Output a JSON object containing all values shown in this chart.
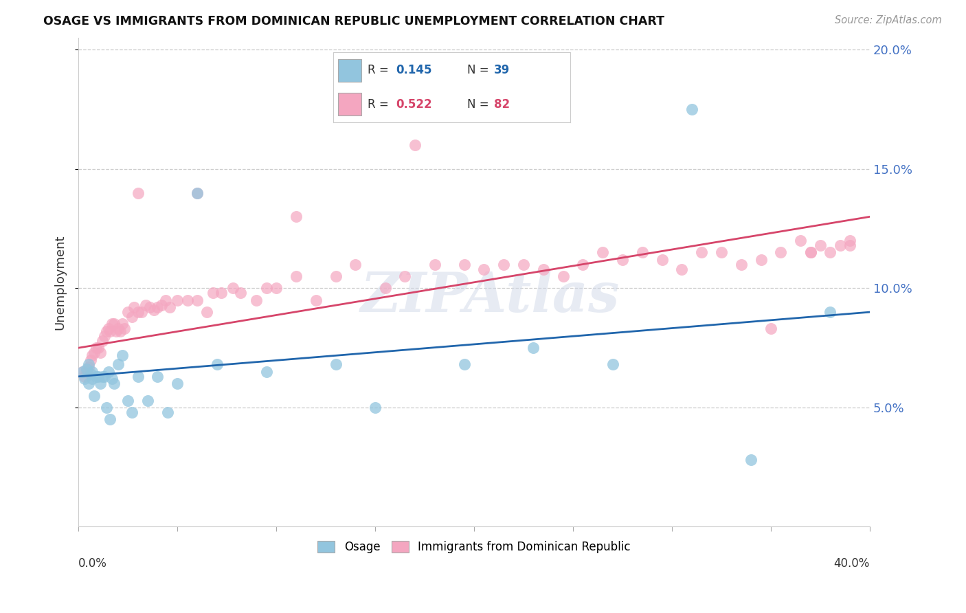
{
  "title": "OSAGE VS IMMIGRANTS FROM DOMINICAN REPUBLIC UNEMPLOYMENT CORRELATION CHART",
  "source_text": "Source: ZipAtlas.com",
  "ylabel": "Unemployment",
  "r_blue": 0.145,
  "n_blue": 39,
  "r_pink": 0.522,
  "n_pink": 82,
  "blue_color": "#92c5de",
  "pink_color": "#f4a6c0",
  "blue_line_color": "#2166ac",
  "pink_line_color": "#d6456a",
  "watermark": "ZIPAtlas",
  "xmin": 0.0,
  "xmax": 0.4,
  "ymin": 0.0,
  "ymax": 0.205,
  "yticks": [
    0.05,
    0.1,
    0.15,
    0.2
  ],
  "ytick_labels": [
    "5.0%",
    "10.0%",
    "15.0%",
    "20.0%"
  ],
  "blue_scatter_x": [
    0.002,
    0.003,
    0.004,
    0.005,
    0.005,
    0.006,
    0.007,
    0.007,
    0.008,
    0.009,
    0.01,
    0.011,
    0.012,
    0.013,
    0.014,
    0.015,
    0.016,
    0.017,
    0.018,
    0.02,
    0.022,
    0.025,
    0.027,
    0.03,
    0.035,
    0.04,
    0.045,
    0.05,
    0.06,
    0.07,
    0.095,
    0.13,
    0.15,
    0.195,
    0.23,
    0.27,
    0.31,
    0.34,
    0.38
  ],
  "blue_scatter_y": [
    0.065,
    0.062,
    0.066,
    0.068,
    0.06,
    0.064,
    0.065,
    0.062,
    0.055,
    0.063,
    0.063,
    0.06,
    0.063,
    0.063,
    0.05,
    0.065,
    0.045,
    0.062,
    0.06,
    0.068,
    0.072,
    0.053,
    0.048,
    0.063,
    0.053,
    0.063,
    0.048,
    0.06,
    0.14,
    0.068,
    0.065,
    0.068,
    0.05,
    0.068,
    0.075,
    0.068,
    0.175,
    0.028,
    0.09
  ],
  "pink_scatter_x": [
    0.002,
    0.003,
    0.004,
    0.005,
    0.006,
    0.007,
    0.008,
    0.009,
    0.01,
    0.011,
    0.012,
    0.013,
    0.014,
    0.015,
    0.016,
    0.017,
    0.018,
    0.019,
    0.02,
    0.021,
    0.022,
    0.023,
    0.025,
    0.027,
    0.028,
    0.03,
    0.032,
    0.034,
    0.036,
    0.038,
    0.04,
    0.042,
    0.044,
    0.046,
    0.05,
    0.055,
    0.06,
    0.065,
    0.068,
    0.072,
    0.078,
    0.082,
    0.09,
    0.095,
    0.1,
    0.11,
    0.12,
    0.13,
    0.14,
    0.155,
    0.165,
    0.18,
    0.195,
    0.205,
    0.215,
    0.225,
    0.235,
    0.245,
    0.255,
    0.265,
    0.275,
    0.285,
    0.295,
    0.305,
    0.315,
    0.325,
    0.335,
    0.345,
    0.355,
    0.365,
    0.37,
    0.375,
    0.38,
    0.385,
    0.39,
    0.03,
    0.06,
    0.11,
    0.17,
    0.35,
    0.37,
    0.39
  ],
  "pink_scatter_y": [
    0.065,
    0.063,
    0.065,
    0.067,
    0.07,
    0.072,
    0.073,
    0.075,
    0.075,
    0.073,
    0.078,
    0.08,
    0.082,
    0.083,
    0.082,
    0.085,
    0.085,
    0.082,
    0.083,
    0.082,
    0.085,
    0.083,
    0.09,
    0.088,
    0.092,
    0.09,
    0.09,
    0.093,
    0.092,
    0.091,
    0.092,
    0.093,
    0.095,
    0.092,
    0.095,
    0.095,
    0.095,
    0.09,
    0.098,
    0.098,
    0.1,
    0.098,
    0.095,
    0.1,
    0.1,
    0.105,
    0.095,
    0.105,
    0.11,
    0.1,
    0.105,
    0.11,
    0.11,
    0.108,
    0.11,
    0.11,
    0.108,
    0.105,
    0.11,
    0.115,
    0.112,
    0.115,
    0.112,
    0.108,
    0.115,
    0.115,
    0.11,
    0.112,
    0.115,
    0.12,
    0.115,
    0.118,
    0.115,
    0.118,
    0.12,
    0.14,
    0.14,
    0.13,
    0.16,
    0.083,
    0.115,
    0.118
  ],
  "blue_line_x0": 0.0,
  "blue_line_x1": 0.4,
  "blue_line_y0": 0.063,
  "blue_line_y1": 0.09,
  "pink_line_x0": 0.0,
  "pink_line_x1": 0.4,
  "pink_line_y0": 0.075,
  "pink_line_y1": 0.13
}
